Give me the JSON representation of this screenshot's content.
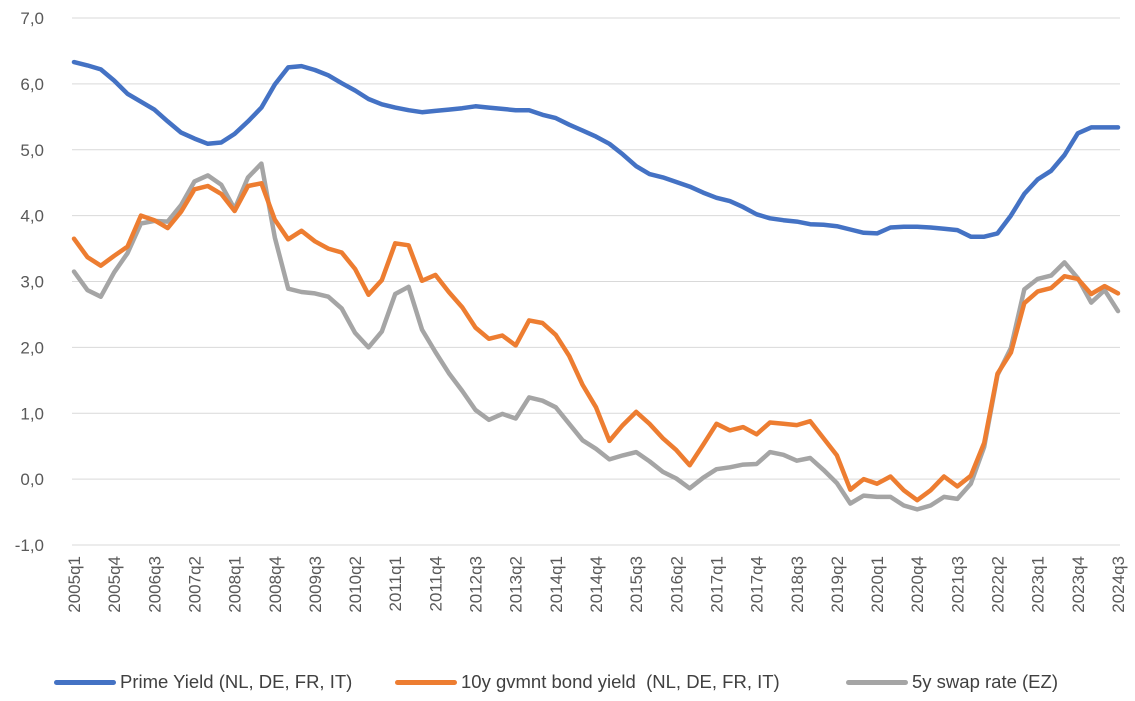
{
  "chart_data": {
    "type": "line",
    "title": "",
    "xlabel": "",
    "ylabel": "",
    "ylim": [
      -1.0,
      7.0
    ],
    "y_ticks": [
      "-1,0",
      "0,0",
      "1,0",
      "2,0",
      "3,0",
      "4,0",
      "5,0",
      "6,0",
      "7,0"
    ],
    "x_tick_labels": [
      "2005q1",
      "2005q4",
      "2006q3",
      "2007q2",
      "2008q1",
      "2008q4",
      "2009q3",
      "2010q2",
      "2011q1",
      "2011q4",
      "2012q3",
      "2013q2",
      "2014q1",
      "2014q4",
      "2015q3",
      "2016q2",
      "2017q1",
      "2017q4",
      "2018q3",
      "2019q2",
      "2020q1",
      "2020q4",
      "2021q3",
      "2022q2",
      "2023q1",
      "2023q4",
      "2024q3"
    ],
    "grid": "horizontal",
    "legend_position": "bottom",
    "colors": {
      "prime": "#4472C4",
      "bond": "#ED7D31",
      "swap": "#A5A5A5",
      "grid": "#d9d9d9",
      "text": "#595959"
    },
    "x": [
      "2005q1",
      "2005q2",
      "2005q3",
      "2005q4",
      "2006q1",
      "2006q2",
      "2006q3",
      "2006q4",
      "2007q1",
      "2007q2",
      "2007q3",
      "2007q4",
      "2008q1",
      "2008q2",
      "2008q3",
      "2008q4",
      "2009q1",
      "2009q2",
      "2009q3",
      "2009q4",
      "2010q1",
      "2010q2",
      "2010q3",
      "2010q4",
      "2011q1",
      "2011q2",
      "2011q3",
      "2011q4",
      "2012q1",
      "2012q2",
      "2012q3",
      "2012q4",
      "2013q1",
      "2013q2",
      "2013q3",
      "2013q4",
      "2014q1",
      "2014q2",
      "2014q3",
      "2014q4",
      "2015q1",
      "2015q2",
      "2015q3",
      "2015q4",
      "2016q1",
      "2016q2",
      "2016q3",
      "2016q4",
      "2017q1",
      "2017q2",
      "2017q3",
      "2017q4",
      "2018q1",
      "2018q2",
      "2018q3",
      "2018q4",
      "2019q1",
      "2019q2",
      "2019q3",
      "2019q4",
      "2020q1",
      "2020q2",
      "2020q3",
      "2020q4",
      "2021q1",
      "2021q2",
      "2021q3",
      "2021q4",
      "2022q1",
      "2022q2",
      "2022q3",
      "2022q4",
      "2023q1",
      "2023q2",
      "2023q3",
      "2023q4",
      "2024q1",
      "2024q2",
      "2024q3"
    ],
    "series": [
      {
        "name": "Prime Yield (NL, DE, FR, IT)",
        "color": "#4472C4",
        "values": [
          6.33,
          6.28,
          6.22,
          6.05,
          5.85,
          5.73,
          5.61,
          5.43,
          5.26,
          5.17,
          5.09,
          5.11,
          5.24,
          5.43,
          5.64,
          5.99,
          6.25,
          6.27,
          6.21,
          6.13,
          6.01,
          5.9,
          5.77,
          5.69,
          5.64,
          5.6,
          5.57,
          5.59,
          5.61,
          5.63,
          5.66,
          5.64,
          5.62,
          5.6,
          5.6,
          5.53,
          5.48,
          5.38,
          5.29,
          5.2,
          5.09,
          4.93,
          4.75,
          4.63,
          4.58,
          4.51,
          4.44,
          4.35,
          4.27,
          4.22,
          4.13,
          4.02,
          3.96,
          3.93,
          3.91,
          3.87,
          3.86,
          3.84,
          3.79,
          3.74,
          3.73,
          3.82,
          3.83,
          3.83,
          3.82,
          3.8,
          3.78,
          3.68,
          3.68,
          3.73,
          4.0,
          4.33,
          4.55,
          4.68,
          4.92,
          5.25,
          5.34,
          5.34,
          5.34
        ]
      },
      {
        "name": "10y gvmnt bond yield  (NL, DE, FR, IT)",
        "color": "#ED7D31",
        "values": [
          3.65,
          3.37,
          3.24,
          3.39,
          3.53,
          4.0,
          3.93,
          3.81,
          4.06,
          4.4,
          4.45,
          4.33,
          4.07,
          4.45,
          4.49,
          3.94,
          3.64,
          3.77,
          3.61,
          3.5,
          3.44,
          3.19,
          2.8,
          3.02,
          3.58,
          3.55,
          3.01,
          3.1,
          2.84,
          2.61,
          2.3,
          2.13,
          2.18,
          2.03,
          2.41,
          2.37,
          2.19,
          1.87,
          1.43,
          1.09,
          0.58,
          0.82,
          1.02,
          0.84,
          0.62,
          0.44,
          0.21,
          0.52,
          0.84,
          0.74,
          0.79,
          0.68,
          0.86,
          0.84,
          0.82,
          0.88,
          0.62,
          0.36,
          -0.16,
          0.0,
          -0.07,
          0.04,
          -0.17,
          -0.32,
          -0.17,
          0.04,
          -0.11,
          0.05,
          0.55,
          1.6,
          1.92,
          2.67,
          2.85,
          2.9,
          3.08,
          3.04,
          2.81,
          2.93,
          2.82
        ]
      },
      {
        "name": "5y swap rate (EZ)",
        "color": "#A5A5A5",
        "values": [
          3.15,
          2.87,
          2.77,
          3.14,
          3.43,
          3.88,
          3.92,
          3.91,
          4.16,
          4.52,
          4.61,
          4.47,
          4.1,
          4.58,
          4.79,
          3.67,
          2.89,
          2.84,
          2.82,
          2.77,
          2.59,
          2.22,
          2.0,
          2.24,
          2.81,
          2.92,
          2.27,
          1.93,
          1.61,
          1.34,
          1.05,
          0.9,
          0.99,
          0.92,
          1.24,
          1.19,
          1.09,
          0.84,
          0.59,
          0.46,
          0.3,
          0.36,
          0.41,
          0.27,
          0.11,
          0.01,
          -0.14,
          0.02,
          0.15,
          0.18,
          0.22,
          0.23,
          0.41,
          0.37,
          0.28,
          0.32,
          0.14,
          -0.06,
          -0.37,
          -0.25,
          -0.27,
          -0.27,
          -0.4,
          -0.46,
          -0.4,
          -0.27,
          -0.3,
          -0.07,
          0.49,
          1.58,
          1.99,
          2.88,
          3.04,
          3.09,
          3.29,
          3.05,
          2.68,
          2.87,
          2.55
        ]
      }
    ]
  }
}
